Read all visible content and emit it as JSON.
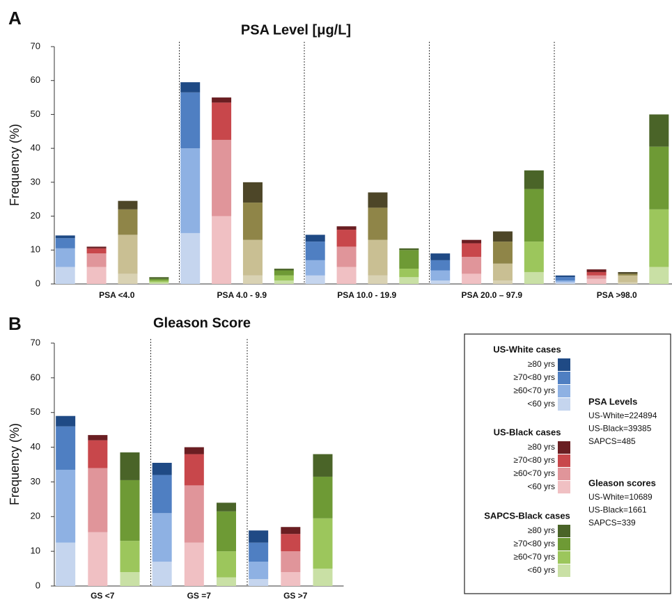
{
  "chart_data": [
    {
      "type": "stacked_bar",
      "panel_label": "A",
      "title": "PSA Level [μg/L]",
      "y_label": "Frequency (%)",
      "categories": [
        "PSA <4.0",
        "PSA 4.0 - 9.9",
        "PSA 10.0 - 19.9",
        "PSA 20.0 – 97.9",
        "PSA >98.0"
      ],
      "ylim": [
        0,
        70
      ],
      "yticks": [
        0,
        10,
        20,
        30,
        40,
        50,
        60,
        70
      ],
      "groups": [
        {
          "segments": [
            {
              "color": "#c5d5ee",
              "values": [
                5,
                15,
                2.5,
                1,
                0.5
              ]
            },
            {
              "color": "#8eb1e3",
              "values": [
                5.5,
                25,
                4.5,
                3,
                0.5
              ]
            },
            {
              "color": "#4f7fc2",
              "values": [
                3,
                16.5,
                5.5,
                3,
                1
              ]
            },
            {
              "color": "#1f4a85",
              "values": [
                0.8,
                3,
                2,
                2,
                0.5
              ]
            }
          ]
        },
        {
          "segments": [
            {
              "color": "#f0c0c3",
              "values": [
                5,
                20,
                5,
                3,
                1.5
              ]
            },
            {
              "color": "#e0959a",
              "values": [
                4,
                22.5,
                6,
                5,
                1
              ]
            },
            {
              "color": "#c8474b",
              "values": [
                1.5,
                11,
                5,
                4,
                1
              ]
            },
            {
              "color": "#6a1e22",
              "values": [
                0.5,
                1.5,
                1,
                1,
                0.8
              ]
            }
          ]
        },
        {
          "segments": [
            {
              "color": "#d9d2b3",
              "values": [
                3,
                2.5,
                2.5,
                1,
                0.5
              ]
            },
            {
              "color": "#c9bf93",
              "values": [
                11.5,
                10.5,
                10.5,
                5,
                2
              ]
            },
            {
              "color": "#8f8548",
              "values": [
                7.5,
                11,
                9.5,
                6.5,
                0.5
              ]
            },
            {
              "color": "#4d4628",
              "values": [
                2.5,
                6,
                4.5,
                3,
                0.5
              ]
            }
          ]
        },
        {
          "segments": [
            {
              "color": "#c9e0a5",
              "values": [
                0.5,
                1,
                2,
                3.5,
                5
              ]
            },
            {
              "color": "#9cc65c",
              "values": [
                0.5,
                1.5,
                2.5,
                9,
                17
              ]
            },
            {
              "color": "#6e9a35",
              "values": [
                0.5,
                1.5,
                5.5,
                15.5,
                18.5
              ]
            },
            {
              "color": "#4a6428",
              "values": [
                0.5,
                0.5,
                0.5,
                5.5,
                9.5
              ]
            }
          ]
        }
      ]
    },
    {
      "type": "stacked_bar",
      "panel_label": "B",
      "title": "Gleason Score",
      "y_label": "Frequency (%)",
      "categories": [
        "GS <7",
        "GS =7",
        "GS >7"
      ],
      "ylim": [
        0,
        70
      ],
      "yticks": [
        0,
        10,
        20,
        30,
        40,
        50,
        60,
        70
      ],
      "groups": [
        {
          "name": "US-White cases",
          "segments": [
            {
              "name": "<60 yrs",
              "color": "#c5d5ee",
              "values": [
                12.5,
                7,
                2
              ]
            },
            {
              "name": "≥60<70 yrs",
              "color": "#8eb1e3",
              "values": [
                21,
                14,
                5
              ]
            },
            {
              "name": "≥70<80 yrs",
              "color": "#4f7fc2",
              "values": [
                12.5,
                11,
                5.5
              ]
            },
            {
              "name": "≥80 yrs",
              "color": "#1f4a85",
              "values": [
                3,
                3.5,
                3.5
              ]
            }
          ]
        },
        {
          "name": "US-Black cases",
          "segments": [
            {
              "name": "<60 yrs",
              "color": "#f0c0c3",
              "values": [
                15.5,
                12.5,
                4
              ]
            },
            {
              "name": "≥60<70 yrs",
              "color": "#e0959a",
              "values": [
                18.5,
                16.5,
                6
              ]
            },
            {
              "name": "≥70<80 yrs",
              "color": "#c8474b",
              "values": [
                8,
                9,
                5
              ]
            },
            {
              "name": "≥80 yrs",
              "color": "#6a1e22",
              "values": [
                1.5,
                2,
                2
              ]
            }
          ]
        },
        {
          "name": "SAPCS-Black cases",
          "segments": [
            {
              "name": "<60 yrs",
              "color": "#c9e0a5",
              "values": [
                4,
                2.5,
                5
              ]
            },
            {
              "name": "≥60<70 yrs",
              "color": "#9cc65c",
              "values": [
                9,
                7.5,
                14.5
              ]
            },
            {
              "name": "≥70<80 yrs",
              "color": "#6e9a35",
              "values": [
                17.5,
                11.5,
                12
              ]
            },
            {
              "name": "≥80 yrs",
              "color": "#4a6428",
              "values": [
                8,
                2.5,
                6.5
              ]
            }
          ]
        }
      ],
      "annotations": [
        {
          "title": "PSA Levels",
          "lines": [
            "US-White=224894",
            "US-Black=39385",
            "SAPCS=485"
          ]
        },
        {
          "title": "Gleason scores",
          "lines": [
            "US-White=10689",
            "US-Black=1661",
            "SAPCS=339"
          ]
        }
      ]
    }
  ]
}
